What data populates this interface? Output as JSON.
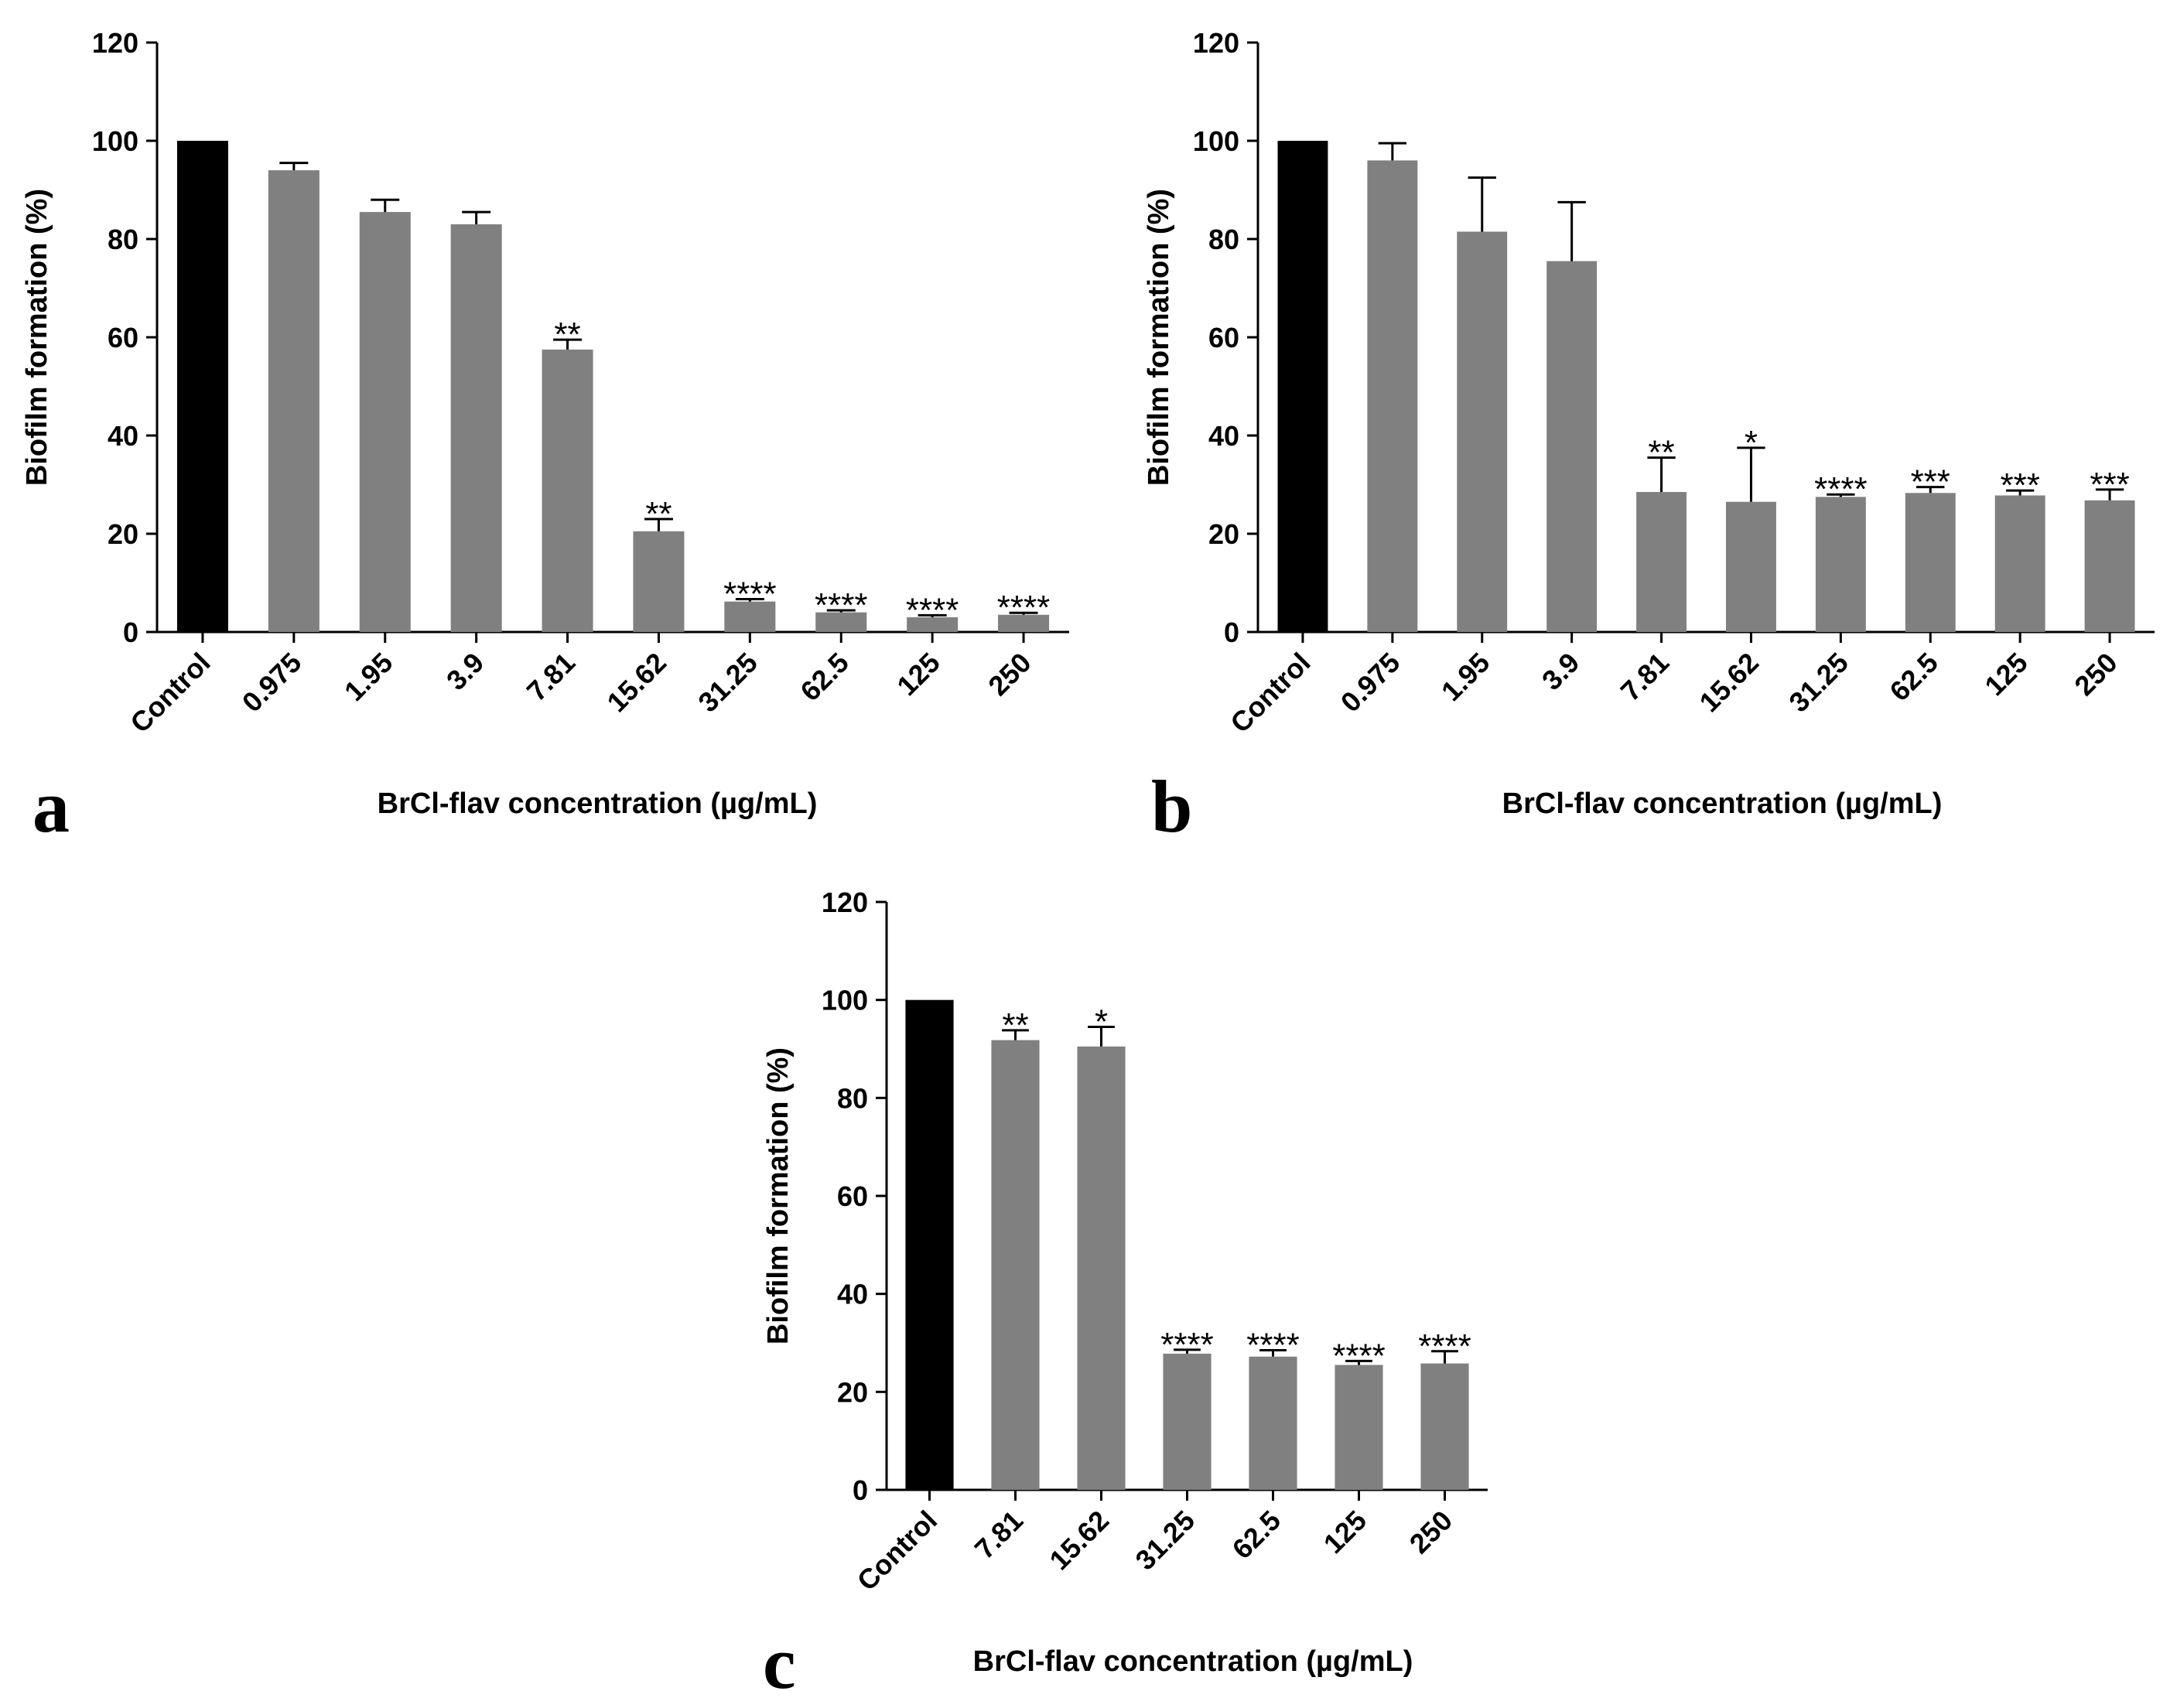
{
  "figure": {
    "colors": {
      "control": "#000000",
      "treatment": "#808080",
      "axis": "#000000",
      "errorbar": "#000000"
    }
  },
  "chart_data": [
    {
      "panel": "a",
      "type": "bar",
      "ylabel": "Biofilm formation (%)",
      "xlabel": "BrCl-flav concentration (µg/mL)",
      "ylim": [
        0,
        120
      ],
      "yticks": [
        0,
        20,
        40,
        60,
        80,
        100,
        120
      ],
      "categories": [
        "Control",
        "0.975",
        "1.95",
        "3.9",
        "7.81",
        "15.62",
        "31.25",
        "62.5",
        "125",
        "250"
      ],
      "values": [
        100,
        94,
        85.5,
        83,
        57.5,
        20.5,
        6.2,
        4.0,
        3.0,
        3.5
      ],
      "errors": [
        0,
        1.5,
        2.5,
        2.5,
        2.0,
        2.5,
        0.5,
        0.4,
        0.4,
        0.4
      ],
      "significance": [
        "",
        "",
        "",
        "",
        "**",
        "**",
        "****",
        "****",
        "****",
        "****"
      ]
    },
    {
      "panel": "b",
      "type": "bar",
      "ylabel": "Biofilm formation (%)",
      "xlabel": "BrCl-flav concentration (µg/mL)",
      "ylim": [
        0,
        120
      ],
      "yticks": [
        0,
        20,
        40,
        60,
        80,
        100,
        120
      ],
      "categories": [
        "Control",
        "0.975",
        "1.95",
        "3.9",
        "7.81",
        "15.62",
        "31.25",
        "62.5",
        "125",
        "250"
      ],
      "values": [
        100,
        96,
        81.5,
        75.5,
        28.5,
        26.5,
        27.5,
        28.3,
        27.8,
        26.8
      ],
      "errors": [
        0,
        3.5,
        11,
        12,
        7,
        11,
        0.5,
        1.2,
        1.0,
        2.2
      ],
      "significance": [
        "",
        "",
        "",
        "",
        "**",
        "*",
        "****",
        "***",
        "***",
        "***"
      ]
    },
    {
      "panel": "c",
      "type": "bar",
      "ylabel": "Biofilm formation (%)",
      "xlabel": "BrCl-flav concentration (µg/mL)",
      "ylim": [
        0,
        120
      ],
      "yticks": [
        0,
        20,
        40,
        60,
        80,
        100,
        120
      ],
      "categories": [
        "Control",
        "7.81",
        "15.62",
        "31.25",
        "62.5",
        "125",
        "250"
      ],
      "values": [
        100,
        91.8,
        90.5,
        27.8,
        27.2,
        25.5,
        25.8
      ],
      "errors": [
        0,
        2.0,
        4.0,
        0.8,
        1.3,
        0.8,
        2.5
      ],
      "significance": [
        "",
        "**",
        "*",
        "****",
        "****",
        "****",
        "****"
      ]
    }
  ]
}
